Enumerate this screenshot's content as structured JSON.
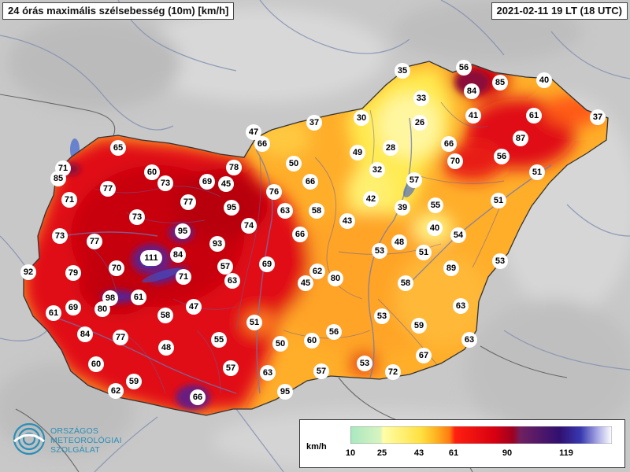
{
  "header": {
    "title": "24 órás maximális szélsebesség (10m) [km/h]",
    "timestamp": "2021-02-11 19 LT  (18 UTC)"
  },
  "legend": {
    "unit": "km/h",
    "ticks": [
      "10",
      "25",
      "43",
      "61",
      "90",
      "119"
    ],
    "colors": {
      "10-25": "#a8e8c0",
      "25-43": "#ffff70",
      "43-61": "#ffa020",
      "61-90": "#e00010",
      "90-119": "#700080",
      "119+": "#5050d0"
    }
  },
  "logo": {
    "line1": "ORSZÁGOS",
    "line2": "METEOROLÓGIAI",
    "line3": "SZOLGÁLAT",
    "color": "#2a8fb8"
  },
  "stations": [
    "35",
    "56",
    "84",
    "85",
    "40",
    "33",
    "41",
    "61",
    "37",
    "30",
    "26",
    "66",
    "87",
    "37",
    "47",
    "66",
    "49",
    "28",
    "70",
    "56",
    "65",
    "50",
    "32",
    "51",
    "71",
    "85",
    "60",
    "73",
    "69",
    "45",
    "78",
    "66",
    "57",
    "76",
    "77",
    "71",
    "77",
    "95",
    "63",
    "58",
    "42",
    "39",
    "55",
    "51",
    "73",
    "74",
    "43",
    "40",
    "54",
    "95",
    "73",
    "77",
    "93",
    "66",
    "48",
    "111",
    "84",
    "69",
    "53",
    "51",
    "53",
    "92",
    "79",
    "70",
    "57",
    "62",
    "80",
    "71",
    "63",
    "45",
    "89",
    "98",
    "80",
    "61",
    "47",
    "58",
    "61",
    "69",
    "58",
    "51",
    "53",
    "63",
    "84",
    "77",
    "55",
    "60",
    "56",
    "59",
    "50",
    "63",
    "48",
    "67",
    "60",
    "57",
    "57",
    "63",
    "53",
    "72",
    "59",
    "62",
    "95",
    "66"
  ]
}
